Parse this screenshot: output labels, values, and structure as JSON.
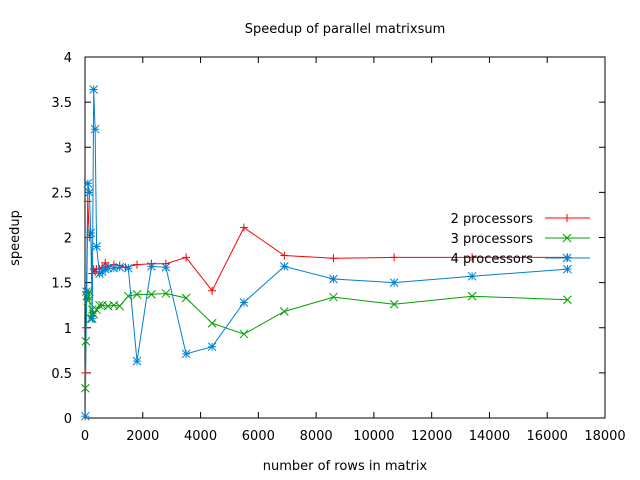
{
  "chart_data": {
    "type": "line",
    "title": "Speedup of parallel matrixsum",
    "xlabel": "number of rows in matrix",
    "ylabel": "speedup",
    "xlim": [
      0,
      18000
    ],
    "ylim": [
      0,
      4
    ],
    "xticks": [
      0,
      2000,
      4000,
      6000,
      8000,
      10000,
      12000,
      14000,
      16000,
      18000
    ],
    "xtick_labels": [
      "0",
      "2000",
      "4000",
      "6000",
      "8000",
      "10000",
      "12000",
      "14000",
      "16000",
      "18000"
    ],
    "yticks": [
      0,
      0.5,
      1,
      1.5,
      2,
      2.5,
      3,
      3.5,
      4
    ],
    "ytick_labels": [
      "0",
      "0.5",
      "1",
      "1.5",
      "2",
      "2.5",
      "3",
      "3.5",
      "4"
    ],
    "grid": false,
    "legend_position": "right",
    "series": [
      {
        "name": "2 processors",
        "color": "#ff0000",
        "marker": "plus",
        "points": [
          [
            10,
            0.5
          ],
          [
            30,
            1.0
          ],
          [
            60,
            1.4
          ],
          [
            100,
            2.4
          ],
          [
            150,
            2.0
          ],
          [
            200,
            2.05
          ],
          [
            250,
            1.6
          ],
          [
            300,
            1.65
          ],
          [
            350,
            1.62
          ],
          [
            400,
            1.65
          ],
          [
            500,
            1.65
          ],
          [
            600,
            1.67
          ],
          [
            700,
            1.72
          ],
          [
            800,
            1.68
          ],
          [
            1000,
            1.7
          ],
          [
            1200,
            1.69
          ],
          [
            1400,
            1.67
          ],
          [
            1800,
            1.7
          ],
          [
            2300,
            1.71
          ],
          [
            2800,
            1.71
          ],
          [
            3500,
            1.78
          ],
          [
            4400,
            1.41
          ],
          [
            5500,
            2.11
          ],
          [
            6900,
            1.8
          ],
          [
            8600,
            1.77
          ],
          [
            10700,
            1.78
          ],
          [
            13400,
            1.78
          ],
          [
            16700,
            1.78
          ]
        ]
      },
      {
        "name": "3 processors",
        "color": "#00a000",
        "marker": "cross",
        "points": [
          [
            10,
            0.33
          ],
          [
            30,
            0.85
          ],
          [
            60,
            1.35
          ],
          [
            100,
            1.3
          ],
          [
            150,
            1.4
          ],
          [
            200,
            1.1
          ],
          [
            250,
            1.2
          ],
          [
            300,
            1.15
          ],
          [
            400,
            1.2
          ],
          [
            500,
            1.25
          ],
          [
            600,
            1.25
          ],
          [
            800,
            1.24
          ],
          [
            1000,
            1.25
          ],
          [
            1200,
            1.24
          ],
          [
            1500,
            1.35
          ],
          [
            1800,
            1.37
          ],
          [
            2300,
            1.37
          ],
          [
            2800,
            1.38
          ],
          [
            3500,
            1.33
          ],
          [
            4400,
            1.05
          ],
          [
            5500,
            0.93
          ],
          [
            6900,
            1.18
          ],
          [
            8600,
            1.34
          ],
          [
            10700,
            1.26
          ],
          [
            13400,
            1.35
          ],
          [
            16700,
            1.31
          ]
        ]
      },
      {
        "name": "4 processors",
        "color": "#0080d0",
        "marker": "star",
        "points": [
          [
            10,
            0.02
          ],
          [
            50,
            1.4
          ],
          [
            100,
            2.6
          ],
          [
            150,
            2.5
          ],
          [
            200,
            2.05
          ],
          [
            250,
            1.1
          ],
          [
            300,
            3.64
          ],
          [
            350,
            3.2
          ],
          [
            400,
            1.9
          ],
          [
            500,
            1.6
          ],
          [
            600,
            1.62
          ],
          [
            700,
            1.65
          ],
          [
            800,
            1.66
          ],
          [
            1000,
            1.66
          ],
          [
            1200,
            1.67
          ],
          [
            1500,
            1.66
          ],
          [
            1800,
            0.63
          ],
          [
            2300,
            1.68
          ],
          [
            2800,
            1.67
          ],
          [
            3500,
            0.71
          ],
          [
            4400,
            0.79
          ],
          [
            5500,
            1.28
          ],
          [
            6900,
            1.68
          ],
          [
            8600,
            1.54
          ],
          [
            10700,
            1.5
          ],
          [
            13400,
            1.57
          ],
          [
            16700,
            1.65
          ]
        ]
      }
    ]
  }
}
